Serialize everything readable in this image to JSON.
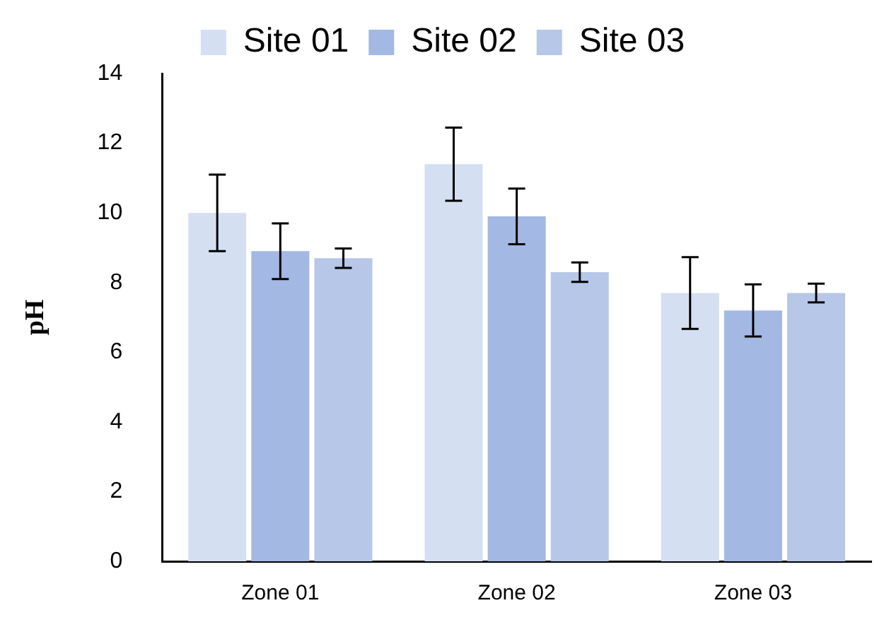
{
  "chart_data": {
    "type": "bar",
    "ylabel": "pH",
    "categories": [
      "Zone 01",
      "Zone 02",
      "Zone 03"
    ],
    "series": [
      {
        "name": "Site 01",
        "color": "#d4dff2",
        "values": [
          10.0,
          11.4,
          7.7
        ],
        "errors": [
          1.1,
          1.05,
          1.03
        ]
      },
      {
        "name": "Site 02",
        "color": "#a3b8e2",
        "values": [
          8.9,
          9.9,
          7.2
        ],
        "errors": [
          0.8,
          0.8,
          0.75
        ]
      },
      {
        "name": "Site 03",
        "color": "#b6c7e8",
        "values": [
          8.7,
          8.3,
          7.7
        ],
        "errors": [
          0.28,
          0.28,
          0.27
        ]
      }
    ],
    "ylim": [
      0,
      14
    ],
    "yticks": [
      0,
      2,
      4,
      6,
      8,
      10,
      12,
      14
    ],
    "grid": false,
    "legend": "top"
  }
}
